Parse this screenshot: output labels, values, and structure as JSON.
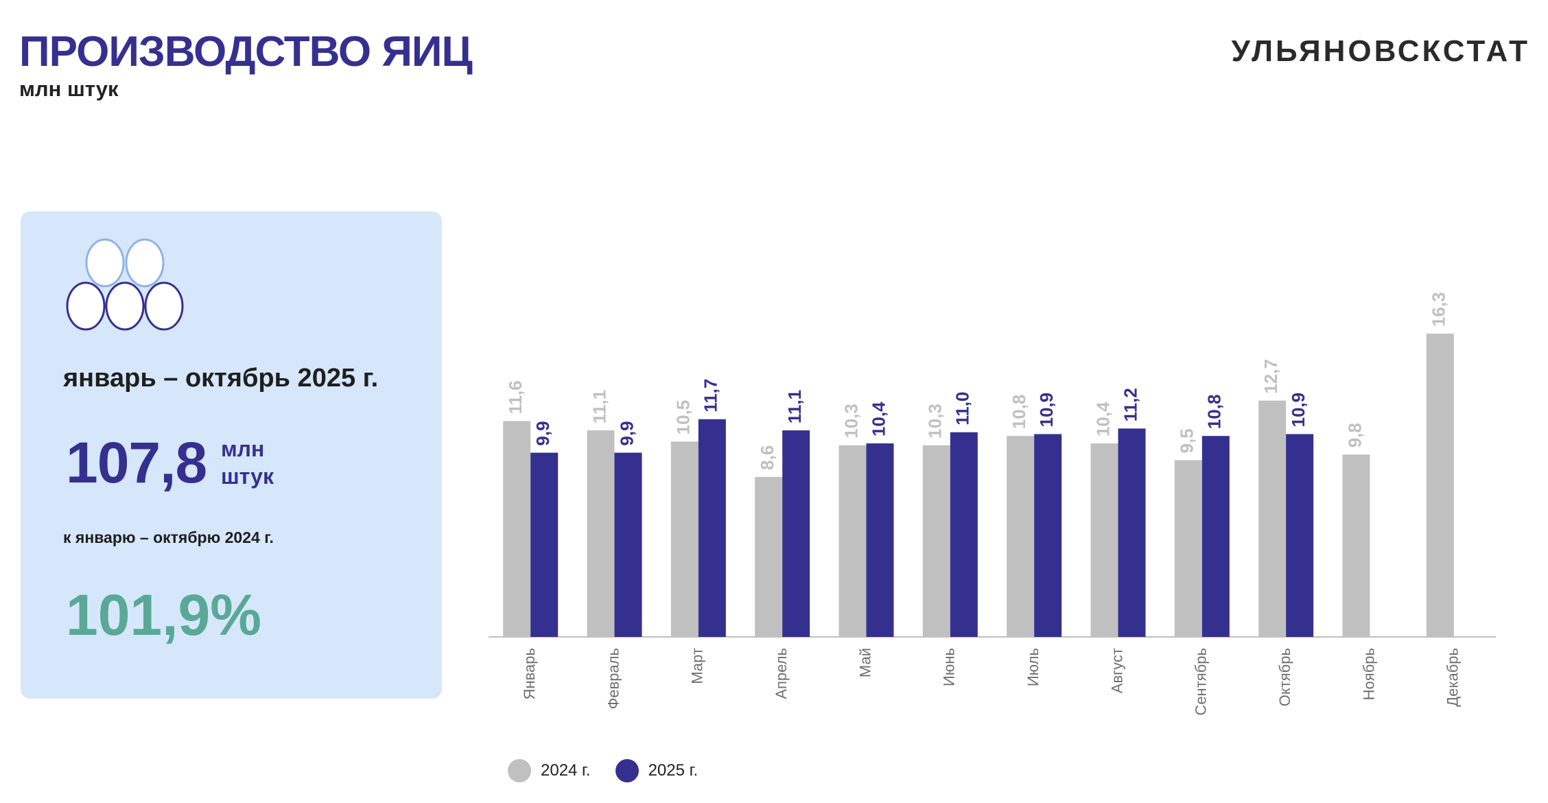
{
  "header": {
    "title": "ПРОИЗВОДСТВО ЯИЦ",
    "subtitle": "млн штук",
    "brand": "УЛЬЯНОВСКСТАТ"
  },
  "summary": {
    "icon": "eggs-icon",
    "period": "январь – октябрь 2025 г.",
    "value": "107,8",
    "unit": "млн штук",
    "comparison_label": "к январю – октябрю 2024 г.",
    "percent": "101,9%"
  },
  "colors": {
    "series_2024": "#c0c0c0",
    "series_2025": "#35308f",
    "percent": "#5aa896",
    "card_bg": "#d6e7fb"
  },
  "chart_data": {
    "type": "bar",
    "title": "ПРОИЗВОДСТВО ЯИЦ",
    "ylabel": "млн штук",
    "xlabel": "",
    "ylim": [
      0,
      18
    ],
    "categories": [
      "Январь",
      "Февраль",
      "Март",
      "Апрель",
      "Май",
      "Июнь",
      "Июль",
      "Август",
      "Сентябрь",
      "Октябрь",
      "Ноябрь",
      "Декабрь"
    ],
    "series": [
      {
        "name": "2024 г.",
        "values": [
          11.6,
          11.1,
          10.5,
          8.6,
          10.3,
          10.3,
          10.8,
          10.4,
          9.5,
          12.7,
          9.8,
          16.3
        ],
        "labels": [
          "11,6",
          "11,1",
          "10,5",
          "8,6",
          "10,3",
          "10,3",
          "10,8",
          "10,4",
          "9,5",
          "12,7",
          "9,8",
          "16,3"
        ]
      },
      {
        "name": "2025 г.",
        "values": [
          9.9,
          9.9,
          11.7,
          11.1,
          10.4,
          11.0,
          10.9,
          11.2,
          10.8,
          10.9,
          null,
          null
        ],
        "labels": [
          "9,9",
          "9,9",
          "11,7",
          "11,1",
          "10,4",
          "11,0",
          "10,9",
          "11,2",
          "10,8",
          "10,9",
          null,
          null
        ]
      }
    ],
    "legend": {
      "position": "bottom-left",
      "entries": [
        "2024 г.",
        "2025 г."
      ]
    }
  }
}
